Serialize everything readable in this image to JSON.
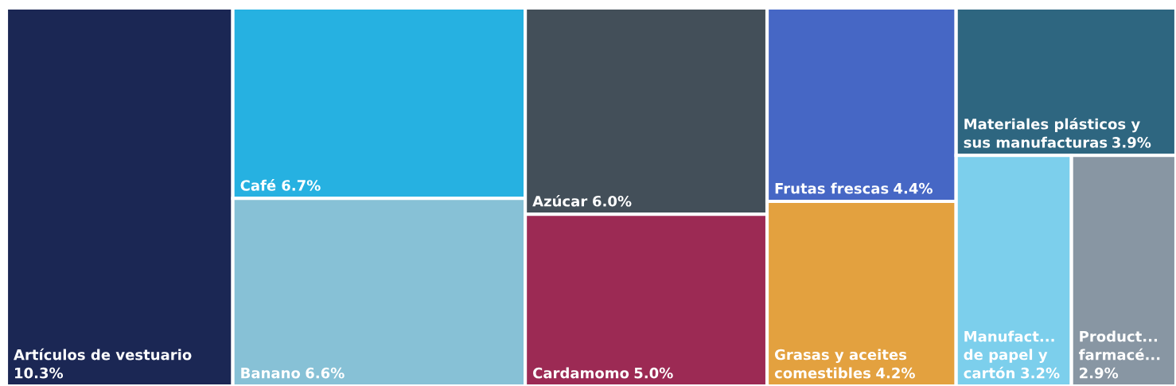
{
  "chart_data": {
    "type": "other",
    "categories": [
      "Artículos de vestuario",
      "Café",
      "Banano",
      "Azúcar",
      "Cardamomo",
      "Frutas frescas",
      "Grasas y aceites comestibles",
      "Materiales plásticos y sus manufacturas",
      "Manufact... de papel y cartón",
      "Product... farmacé..."
    ],
    "values": [
      10.3,
      6.7,
      6.6,
      6.0,
      5.0,
      4.4,
      4.2,
      3.9,
      3.2,
      2.9
    ],
    "colors": [
      "#1b2754",
      "#26b1e1",
      "#87c1d6",
      "#434f59",
      "#9c2a54",
      "#4667c5",
      "#e3a13f",
      "#2e6680",
      "#7ccfec",
      "#8896a3"
    ],
    "value_labels": [
      "10.3%",
      "6.7%",
      "6.6%",
      "6.0%",
      "5.0%",
      "4.4%",
      "4.2%",
      "3.9%",
      "3.2%",
      "2.9%"
    ]
  }
}
